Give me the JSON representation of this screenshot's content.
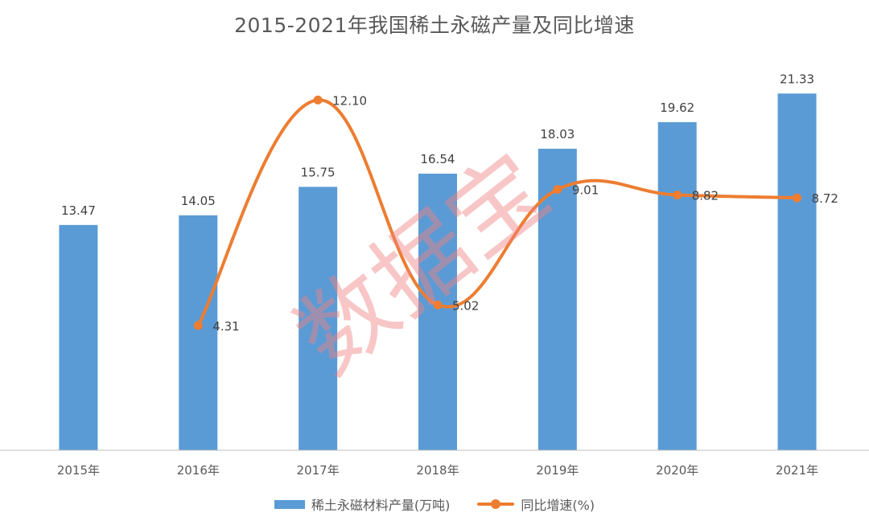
{
  "chart_data": {
    "type": "bar",
    "title": "2015-2021年我国稀土永磁产量及同比增速",
    "categories": [
      "2015年",
      "2016年",
      "2017年",
      "2018年",
      "2019年",
      "2020年",
      "2021年"
    ],
    "series": [
      {
        "name": "稀土永磁材料产量(万吨)",
        "type": "bar",
        "values": [
          13.47,
          14.05,
          15.75,
          16.54,
          18.03,
          19.62,
          21.33
        ],
        "labels": [
          "13.47",
          "14.05",
          "15.75",
          "16.54",
          "18.03",
          "19.62",
          "21.33"
        ],
        "color": "#5b9bd5"
      },
      {
        "name": "同比增速(%)",
        "type": "line",
        "smooth": true,
        "values": [
          null,
          4.31,
          12.1,
          5.02,
          9.01,
          8.82,
          8.72
        ],
        "labels": [
          "",
          "4.31",
          "12.10",
          "5.02",
          "9.01",
          "8.82",
          "8.72"
        ],
        "color": "#ed7d31"
      }
    ],
    "ylim_bar": [
      0,
      25
    ],
    "ylim_line": [
      0,
      14
    ],
    "grid": false,
    "legend": "bottom"
  },
  "watermark": "数据宝"
}
